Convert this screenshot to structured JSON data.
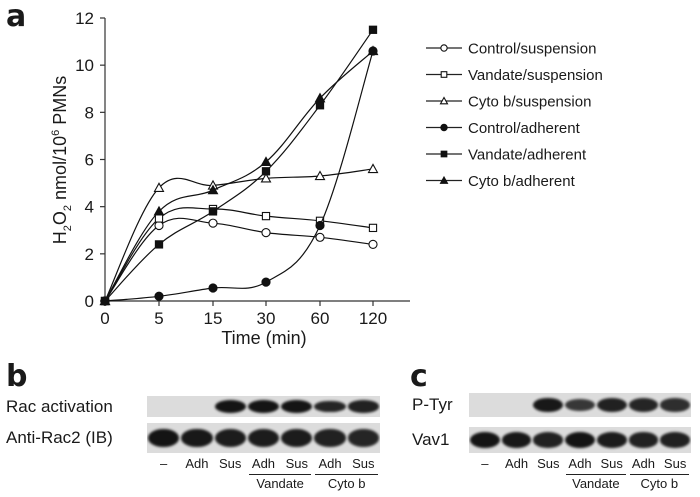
{
  "panels": {
    "a": {
      "letter": "a"
    },
    "b": {
      "letter": "b",
      "rows": [
        {
          "label": "Rac activation",
          "bands": [
            0,
            0,
            1,
            1,
            1,
            0.8,
            0.85
          ]
        },
        {
          "label": "Anti-Rac2 (IB)",
          "bands": [
            1,
            0.95,
            0.9,
            0.9,
            0.9,
            0.85,
            0.8
          ]
        }
      ],
      "lanes": [
        "–",
        "Adh",
        "Sus",
        "Adh",
        "Sus",
        "Adh",
        "Sus"
      ],
      "groups": [
        {
          "label": "Vandate",
          "lanes": [
            3,
            4
          ]
        },
        {
          "label": "Cyto b",
          "lanes": [
            5,
            6
          ]
        }
      ]
    },
    "c": {
      "letter": "c",
      "rows": [
        {
          "label": "P-Tyr",
          "bands": [
            0,
            0,
            0.95,
            0.6,
            0.85,
            0.8,
            0.7
          ]
        },
        {
          "label": "Vav1",
          "bands": [
            1,
            0.95,
            0.85,
            1,
            0.9,
            0.85,
            0.85
          ]
        }
      ],
      "lanes": [
        "–",
        "Adh",
        "Sus",
        "Adh",
        "Sus",
        "Adh",
        "Sus"
      ],
      "groups": [
        {
          "label": "Vandate",
          "lanes": [
            3,
            4
          ]
        },
        {
          "label": "Cyto b",
          "lanes": [
            5,
            6
          ]
        }
      ]
    }
  },
  "chart_data": {
    "type": "line",
    "title": "",
    "xlabel": "Time (min)",
    "ylabel": "H2O2 nmol/10^6 PMNs",
    "ylabel_parts": {
      "h": "H",
      "sub2a": "2",
      "o": "O",
      "sub2b": "2",
      "mid": " nmol/10",
      "sup": "6",
      "end": " PMNs"
    },
    "x": [
      "0",
      "5",
      "15",
      "30",
      "60",
      "120"
    ],
    "x_is_categorical": true,
    "ylim": [
      0,
      12
    ],
    "yticks": [
      0,
      2,
      4,
      6,
      8,
      10,
      12
    ],
    "grid": false,
    "legend_position": "right",
    "series": [
      {
        "name": "Control/suspension",
        "marker": "circle-open",
        "values": [
          0,
          3.2,
          3.3,
          2.9,
          2.7,
          2.4
        ]
      },
      {
        "name": "Vandate/suspension",
        "marker": "square-open",
        "values": [
          0,
          3.5,
          3.9,
          3.6,
          3.4,
          3.1
        ]
      },
      {
        "name": "Cyto b/suspension",
        "marker": "triangle-open",
        "values": [
          0,
          4.8,
          4.9,
          5.2,
          5.3,
          5.6
        ]
      },
      {
        "name": "Control/adherent",
        "marker": "circle-filled",
        "values": [
          0,
          0.2,
          0.55,
          0.8,
          3.2,
          10.6
        ]
      },
      {
        "name": "Vandate/adherent",
        "marker": "square-filled",
        "values": [
          0,
          2.4,
          3.8,
          5.5,
          8.3,
          11.5
        ]
      },
      {
        "name": "Cyto b/adherent",
        "marker": "triangle-filled",
        "values": [
          0,
          3.8,
          4.7,
          5.9,
          8.6,
          10.6
        ]
      }
    ]
  }
}
